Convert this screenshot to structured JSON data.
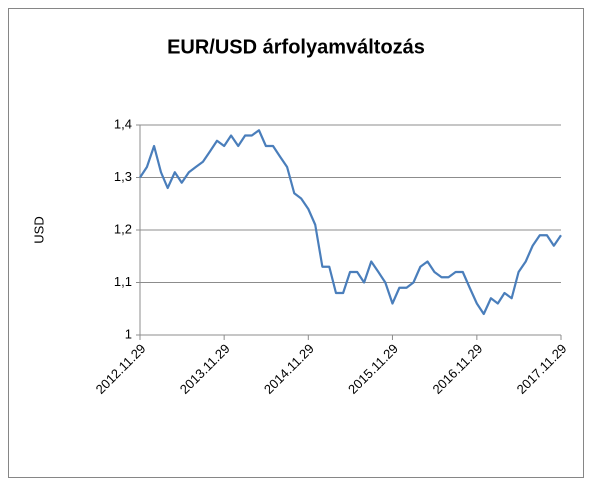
{
  "chart_data": {
    "type": "line",
    "title": "EUR/USD árfolyamváltozás",
    "y_label": "USD",
    "x": [
      "2012.11.29",
      "2012.12.29",
      "2013.01.29",
      "2013.02.28",
      "2013.03.29",
      "2013.04.29",
      "2013.05.29",
      "2013.06.29",
      "2013.07.29",
      "2013.08.29",
      "2013.09.29",
      "2013.10.29",
      "2013.11.29",
      "2013.12.29",
      "2014.01.29",
      "2014.02.28",
      "2014.03.29",
      "2014.04.29",
      "2014.05.29",
      "2014.06.29",
      "2014.07.29",
      "2014.08.29",
      "2014.09.29",
      "2014.10.29",
      "2014.11.29",
      "2014.12.29",
      "2015.01.29",
      "2015.02.28",
      "2015.03.29",
      "2015.04.29",
      "2015.05.29",
      "2015.06.29",
      "2015.07.29",
      "2015.08.29",
      "2015.09.29",
      "2015.10.29",
      "2015.11.29",
      "2015.12.29",
      "2016.01.29",
      "2016.02.28",
      "2016.03.29",
      "2016.04.29",
      "2016.05.29",
      "2016.06.29",
      "2016.07.29",
      "2016.08.29",
      "2016.09.29",
      "2016.10.29",
      "2016.11.29",
      "2016.12.29",
      "2017.01.29",
      "2017.02.28",
      "2017.03.29",
      "2017.04.29",
      "2017.05.29",
      "2017.06.29",
      "2017.07.29",
      "2017.08.29",
      "2017.09.29",
      "2017.10.29",
      "2017.11.29"
    ],
    "series": [
      {
        "name": "EUR/USD",
        "color": "#4a7ebb",
        "values": [
          1.3,
          1.32,
          1.36,
          1.31,
          1.28,
          1.31,
          1.29,
          1.31,
          1.32,
          1.33,
          1.35,
          1.37,
          1.36,
          1.38,
          1.36,
          1.38,
          1.38,
          1.39,
          1.36,
          1.36,
          1.34,
          1.32,
          1.27,
          1.26,
          1.24,
          1.21,
          1.13,
          1.13,
          1.08,
          1.08,
          1.12,
          1.12,
          1.1,
          1.14,
          1.12,
          1.1,
          1.06,
          1.09,
          1.09,
          1.1,
          1.13,
          1.14,
          1.12,
          1.11,
          1.11,
          1.12,
          1.12,
          1.09,
          1.06,
          1.04,
          1.07,
          1.06,
          1.08,
          1.07,
          1.12,
          1.14,
          1.17,
          1.19,
          1.19,
          1.17,
          1.19
        ]
      }
    ],
    "xlim": [
      "2012.11.29",
      "2017.11.29"
    ],
    "xticks": [
      "2012.11.29",
      "2013.11.29",
      "2014.11.29",
      "2015.11.29",
      "2016.11.29",
      "2017.11.29"
    ],
    "ylim": [
      1,
      1.4
    ],
    "yticks": [
      1,
      {
        "value": 1.1,
        "label": "1,1"
      },
      {
        "value": 1.2,
        "label": "1,2"
      },
      {
        "value": 1.3,
        "label": "1,3"
      },
      {
        "value": 1.4,
        "label": "1,4"
      }
    ],
    "grid": true
  }
}
